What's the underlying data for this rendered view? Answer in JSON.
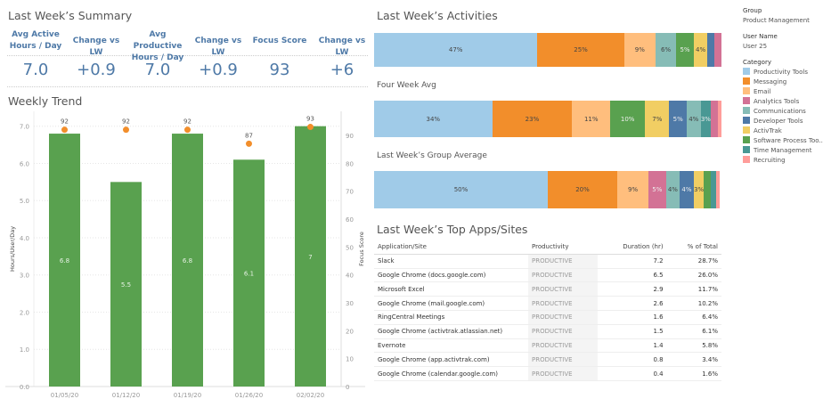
{
  "summary": {
    "title": "Last Week’s Summary",
    "kpis": [
      {
        "label": "Avg Active Hours / Day",
        "value": "7.0"
      },
      {
        "label": "Change vs LW",
        "value": "+0.9"
      },
      {
        "label": "Avg Productive Hours / Day",
        "value": "7.0"
      },
      {
        "label": "Change vs LW",
        "value": "+0.9"
      },
      {
        "label": "Focus Score",
        "value": "93"
      },
      {
        "label": "Change vs LW",
        "value": "+6"
      }
    ]
  },
  "filters": {
    "group_label": "Group",
    "group_value": "Product Management",
    "user_label": "User Name",
    "user_value": "User 25",
    "category_label": "Category"
  },
  "colors": {
    "Productivity Tools": "#a0cbe8",
    "Messaging": "#f28e2b",
    "Email": "#ffbe7d",
    "Analytics Tools": "#d37295",
    "Communications": "#86bcb6",
    "Developer Tools": "#4e79a7",
    "ActivTrak": "#f1ce63",
    "Software Process Tools": "#59a14f",
    "Time Management": "#499894",
    "Recruiting": "#ff9d9a",
    "bar": "#59a14f",
    "dot": "#f28e2b"
  },
  "legend": [
    "Productivity Tools",
    "Messaging",
    "Email",
    "Analytics Tools",
    "Communications",
    "Developer Tools",
    "ActivTrak",
    "Software Process Too..",
    "Time Management",
    "Recruiting"
  ],
  "chart_data": [
    {
      "type": "bar",
      "title": "Weekly Trend",
      "categories": [
        "01/05/20",
        "01/12/20",
        "01/19/20",
        "01/26/20",
        "02/02/20"
      ],
      "series": [
        {
          "values": [
            6.8,
            5.5,
            6.8,
            6.1,
            7.0
          ],
          "axis": "left"
        },
        {
          "values": [
            92,
            92,
            92,
            87,
            93
          ],
          "axis": "right",
          "mark": "scatter"
        }
      ],
      "ylabel": "Hours/User/Day",
      "y2label": "Focus Score",
      "ylim": [
        0,
        7.4
      ],
      "y2lim": [
        0,
        98.6
      ],
      "yticks": [
        "0.0",
        "1.0",
        "2.0",
        "3.0",
        "4.0",
        "5.0",
        "6.0",
        "7.0"
      ],
      "y2ticks": [
        "0",
        "10",
        "20",
        "30",
        "40",
        "50",
        "60",
        "70",
        "80",
        "90"
      ],
      "grid": true
    },
    {
      "type": "bar",
      "orientation": "horizontal",
      "stacked": true,
      "title": "Last Week’s Activities",
      "segments": [
        {
          "category": "Productivity Tools",
          "value": 47,
          "label": "47%"
        },
        {
          "category": "Messaging",
          "value": 25,
          "label": "25%"
        },
        {
          "category": "Email",
          "value": 9,
          "label": "9%"
        },
        {
          "category": "Communications",
          "value": 6,
          "label": "6%"
        },
        {
          "category": "Software Process Tools",
          "value": 5,
          "label": "5%"
        },
        {
          "category": "ActivTrak",
          "value": 4,
          "label": "4%"
        },
        {
          "category": "Developer Tools",
          "value": 2,
          "label": ""
        },
        {
          "category": "Analytics Tools",
          "value": 2,
          "label": ""
        }
      ]
    },
    {
      "type": "bar",
      "orientation": "horizontal",
      "stacked": true,
      "title": "Four Week Avg",
      "segments": [
        {
          "category": "Productivity Tools",
          "value": 34,
          "label": "34%"
        },
        {
          "category": "Messaging",
          "value": 23,
          "label": "23%"
        },
        {
          "category": "Email",
          "value": 11,
          "label": "11%"
        },
        {
          "category": "Software Process Tools",
          "value": 10,
          "label": "10%"
        },
        {
          "category": "ActivTrak",
          "value": 7,
          "label": "7%"
        },
        {
          "category": "Developer Tools",
          "value": 5,
          "label": "5%"
        },
        {
          "category": "Communications",
          "value": 4,
          "label": "4%"
        },
        {
          "category": "Time Management",
          "value": 3,
          "label": "3%"
        },
        {
          "category": "Analytics Tools",
          "value": 2,
          "label": ""
        },
        {
          "category": "Recruiting",
          "value": 1,
          "label": ""
        }
      ]
    },
    {
      "type": "bar",
      "orientation": "horizontal",
      "stacked": true,
      "title": "Last Week’s Group Average",
      "segments": [
        {
          "category": "Productivity Tools",
          "value": 50,
          "label": "50%"
        },
        {
          "category": "Messaging",
          "value": 20,
          "label": "20%"
        },
        {
          "category": "Email",
          "value": 9,
          "label": "9%"
        },
        {
          "category": "Analytics Tools",
          "value": 5,
          "label": "5%"
        },
        {
          "category": "Communications",
          "value": 4,
          "label": "4%"
        },
        {
          "category": "Developer Tools",
          "value": 4,
          "label": "4%"
        },
        {
          "category": "ActivTrak",
          "value": 3,
          "label": "3%"
        },
        {
          "category": "Software Process Tools",
          "value": 2,
          "label": ""
        },
        {
          "category": "Time Management",
          "value": 1.5,
          "label": ""
        },
        {
          "category": "Recruiting",
          "value": 1,
          "label": ""
        }
      ]
    },
    {
      "type": "table",
      "title": "Last Week’s Top Apps/Sites",
      "columns": [
        "Application/Site",
        "Productivity",
        "Duration (hr)",
        "% of Total"
      ],
      "rows": [
        [
          "Slack",
          "PRODUCTIVE",
          "7.2",
          "28.7%"
        ],
        [
          "Google Chrome (docs.google.com)",
          "PRODUCTIVE",
          "6.5",
          "26.0%"
        ],
        [
          "Microsoft Excel",
          "PRODUCTIVE",
          "2.9",
          "11.7%"
        ],
        [
          "Google Chrome (mail.google.com)",
          "PRODUCTIVE",
          "2.6",
          "10.2%"
        ],
        [
          "RingCentral Meetings",
          "PRODUCTIVE",
          "1.6",
          "6.4%"
        ],
        [
          "Google Chrome (activtrak.atlassian.net)",
          "PRODUCTIVE",
          "1.5",
          "6.1%"
        ],
        [
          "Evernote",
          "PRODUCTIVE",
          "1.4",
          "5.8%"
        ],
        [
          "Google Chrome (app.activtrak.com)",
          "PRODUCTIVE",
          "0.8",
          "3.4%"
        ],
        [
          "Google Chrome (calendar.google.com)",
          "PRODUCTIVE",
          "0.4",
          "1.6%"
        ]
      ]
    }
  ]
}
